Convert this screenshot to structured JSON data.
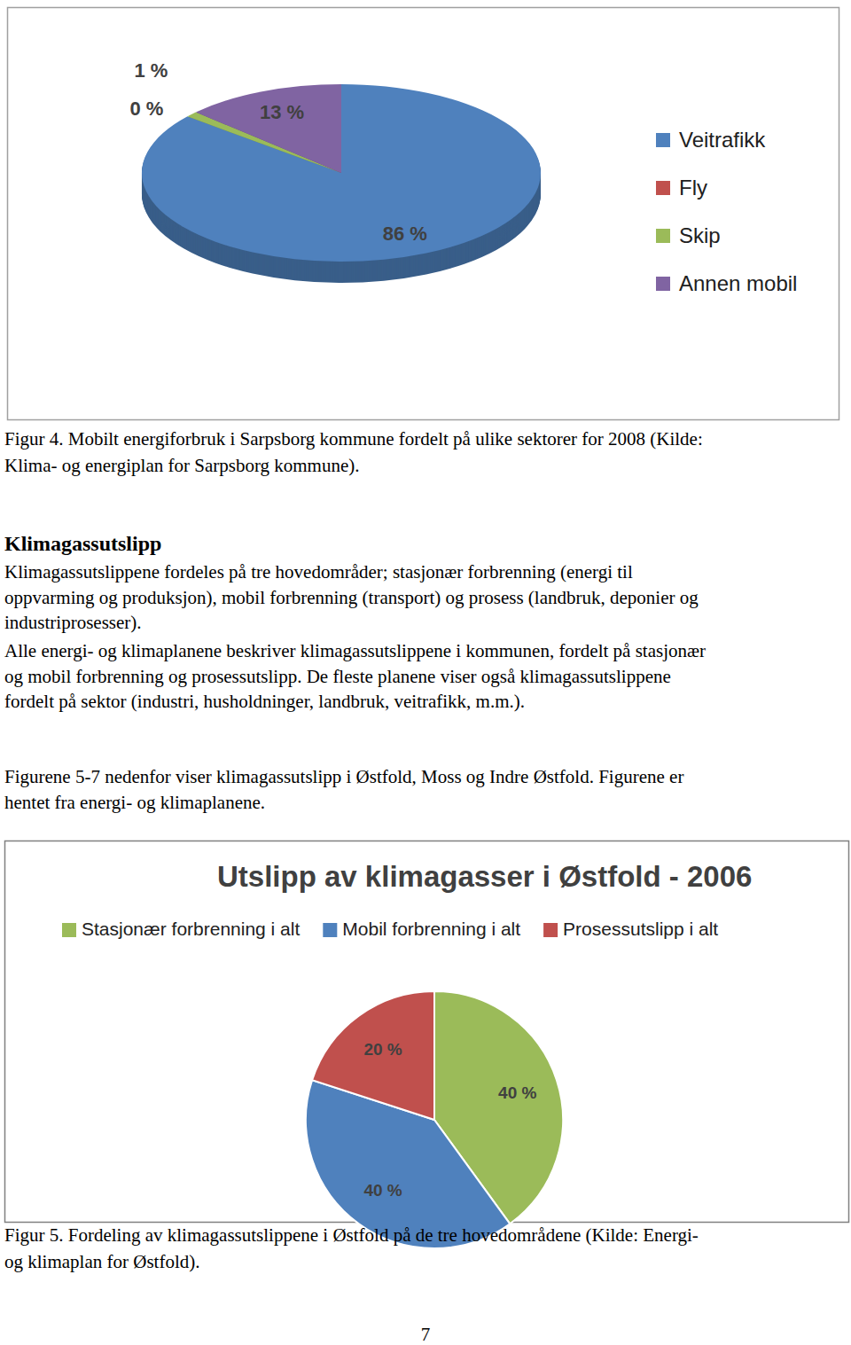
{
  "chart_data": [
    {
      "type": "pie",
      "categories": [
        "Veitrafikk",
        "Fly",
        "Skip",
        "Annen mobil"
      ],
      "values": [
        86,
        0,
        1,
        13
      ],
      "value_labels": [
        "86 %",
        "0 %",
        "1 %",
        "13 %"
      ],
      "colors": [
        "#4f81bd",
        "#c0504d",
        "#9bbb59",
        "#8064a2"
      ],
      "data_labels": true,
      "legend": "right"
    },
    {
      "type": "pie",
      "title": "Utslipp av klimagasser i Østfold - 2006",
      "categories": [
        "Stasjonær forbrenning i alt",
        "Mobil forbrenning i alt",
        "Prosessutslipp i alt"
      ],
      "values": [
        40,
        40,
        20
      ],
      "value_labels": [
        "40 %",
        "40 %",
        "20 %"
      ],
      "colors": [
        "#9bbb59",
        "#4f81bd",
        "#c0504d"
      ],
      "data_labels": true,
      "legend": "top"
    }
  ],
  "document": {
    "caption_4": [
      "Figur 4. Mobilt energiforbruk i Sarpsborg kommune fordelt på ulike sektorer for 2008 (Kilde:",
      "Klima- og energiplan for Sarpsborg kommune)."
    ],
    "heading": "Klimagassutslipp",
    "paragraphs": [
      [
        "Klimagassutslippene fordeles på tre hovedområder; stasjonær forbrenning (energi til",
        "oppvarming og produksjon), mobil forbrenning (transport) og prosess (landbruk, deponier og",
        "industriprosesser)."
      ],
      [
        "Alle energi- og klimaplanene beskriver klimagassutslippene i kommunen, fordelt på stasjonær",
        "og mobil forbrenning og prosessutslipp. De fleste planene viser også klimagassutslippene",
        "fordelt på sektor (industri, husholdninger, landbruk, veitrafikk, m.m.)."
      ],
      [
        "Figurene 5-7 nedenfor viser klimagassutslipp i Østfold, Moss og Indre Østfold. Figurene er",
        "hentet fra energi- og klimaplanene."
      ]
    ],
    "caption_5": [
      "Figur 5. Fordeling av klimagassutslippene i Østfold på de tre hovedområdene (Kilde: Energi-",
      "og klimaplan for Østfold)."
    ],
    "page_number": "7"
  }
}
